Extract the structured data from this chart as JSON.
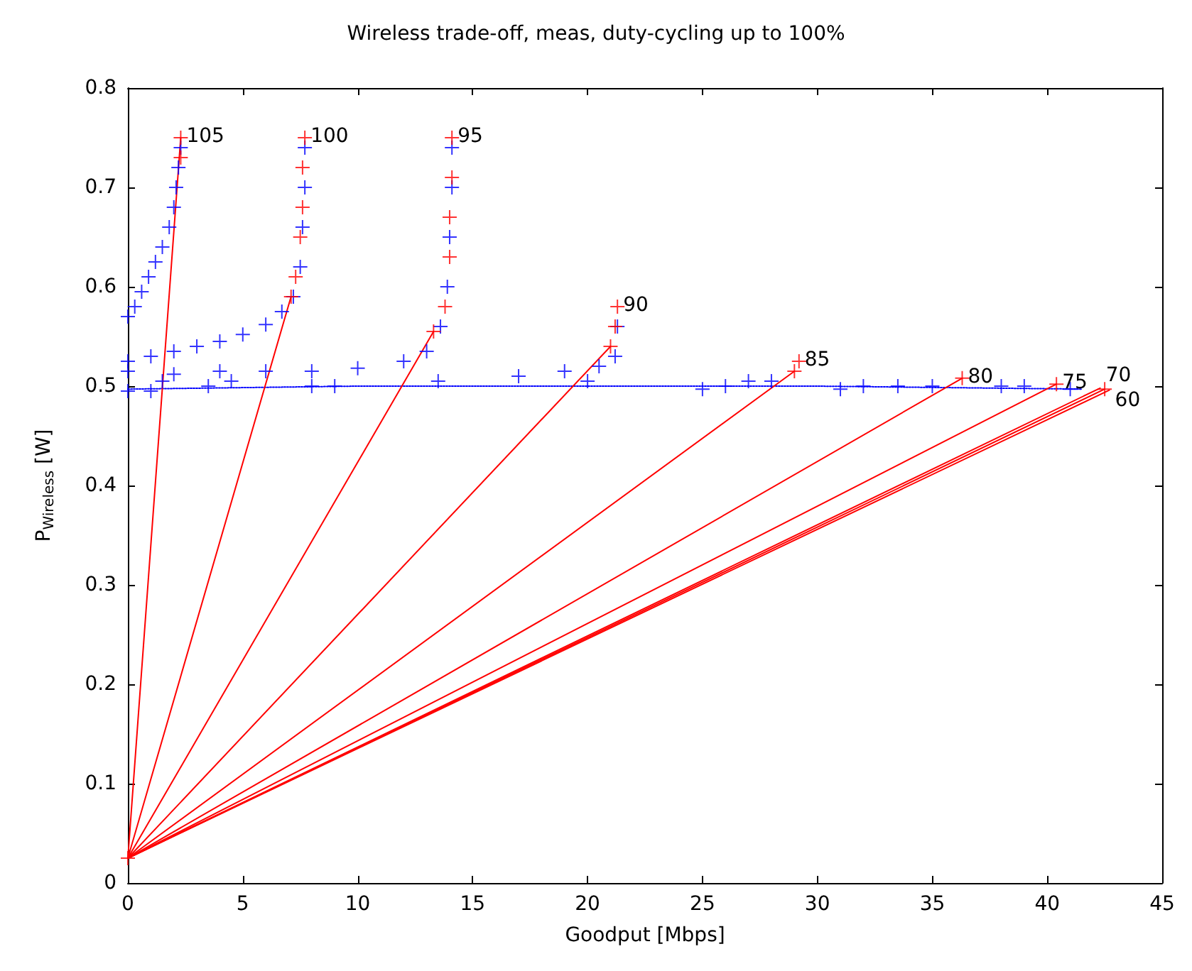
{
  "chart_data": {
    "type": "scatter",
    "title": "Wireless trade-off, meas, duty-cycling up to 100%",
    "xlabel": "Goodput [Mbps]",
    "ylabel": "P$_{Wireless}$ [W]",
    "xlim": [
      0,
      45
    ],
    "xticks": [
      0,
      5,
      10,
      15,
      20,
      25,
      30,
      35,
      40,
      45
    ],
    "ylim": [
      0,
      0.8
    ],
    "yticks": [
      0,
      0.1,
      0.2,
      0.3,
      0.4,
      0.5,
      0.6,
      0.7,
      0.8
    ],
    "grid": false,
    "series": [
      {
        "marker": "cross",
        "color": "#0000ff",
        "x": [
          0,
          0.3,
          0.6,
          0.9,
          1.2,
          1.5,
          1.8,
          2.0,
          2.1,
          2.2,
          2.3,
          0,
          1,
          2,
          3,
          4,
          5,
          6,
          6.7,
          7.2,
          7.5,
          7.6,
          7.7,
          7.7,
          0,
          2,
          4,
          6,
          8,
          10,
          12,
          13,
          13.6,
          13.9,
          14,
          14.1,
          14.1,
          17,
          19,
          20.5,
          21.2,
          21.3,
          0,
          1,
          1.5,
          3.5,
          4.5,
          8,
          9,
          13.5,
          20,
          25,
          26,
          27,
          28,
          31,
          32,
          33.5,
          35,
          38,
          39,
          41
        ],
        "values": [
          0.57,
          0.58,
          0.595,
          0.61,
          0.625,
          0.64,
          0.66,
          0.68,
          0.7,
          0.72,
          0.74,
          0.525,
          0.53,
          0.535,
          0.54,
          0.545,
          0.552,
          0.562,
          0.575,
          0.59,
          0.62,
          0.66,
          0.7,
          0.74,
          0.515,
          0.512,
          0.515,
          0.515,
          0.515,
          0.518,
          0.525,
          0.535,
          0.56,
          0.6,
          0.65,
          0.7,
          0.74,
          0.51,
          0.515,
          0.52,
          0.53,
          0.56,
          0.495,
          0.495,
          0.505,
          0.5,
          0.505,
          0.5,
          0.5,
          0.505,
          0.505,
          0.497,
          0.5,
          0.505,
          0.505,
          0.497,
          0.5,
          0.5,
          0.5,
          0.5,
          0.5,
          0.497
        ]
      },
      {
        "type": "line",
        "marker": "none",
        "line_style": "dotted",
        "color": "#0000ff",
        "x": [
          0,
          10,
          20,
          30,
          41.5
        ],
        "values": [
          0.497,
          0.5,
          0.5,
          0.5,
          0.497
        ]
      },
      {
        "marker": "cross",
        "color": "#ff0000",
        "x": [
          0,
          2.3,
          2.3,
          7.1,
          7.3,
          7.5,
          7.6,
          7.6,
          7.7,
          13.3,
          13.8,
          14,
          14,
          14.1,
          14.1,
          21,
          21.2,
          21.3,
          29,
          29.2,
          36.3,
          40.4,
          42.5
        ],
        "values": [
          0.025,
          0.73,
          0.75,
          0.59,
          0.61,
          0.65,
          0.68,
          0.72,
          0.75,
          0.555,
          0.58,
          0.63,
          0.67,
          0.71,
          0.75,
          0.54,
          0.56,
          0.58,
          0.515,
          0.525,
          0.508,
          0.502,
          0.497
        ]
      },
      {
        "type": "line",
        "marker": "none",
        "color": "#ff0000",
        "x": [
          0,
          2.3
        ],
        "values": [
          0.025,
          0.75
        ]
      },
      {
        "type": "line",
        "marker": "none",
        "color": "#ff0000",
        "x": [
          0,
          7.1
        ],
        "values": [
          0.025,
          0.59
        ]
      },
      {
        "type": "line",
        "marker": "none",
        "color": "#ff0000",
        "x": [
          0,
          13.3
        ],
        "values": [
          0.025,
          0.555
        ]
      },
      {
        "type": "line",
        "marker": "none",
        "color": "#ff0000",
        "x": [
          0,
          21
        ],
        "values": [
          0.025,
          0.54
        ]
      },
      {
        "type": "line",
        "marker": "none",
        "color": "#ff0000",
        "x": [
          0,
          29
        ],
        "values": [
          0.025,
          0.515
        ]
      },
      {
        "type": "line",
        "marker": "none",
        "color": "#ff0000",
        "x": [
          0,
          36.3
        ],
        "values": [
          0.025,
          0.508
        ]
      },
      {
        "type": "line",
        "marker": "none",
        "color": "#ff0000",
        "x": [
          0,
          40.4
        ],
        "values": [
          0.025,
          0.502
        ]
      },
      {
        "type": "line",
        "marker": "none",
        "color": "#ff0000",
        "x": [
          0,
          42.3
        ],
        "values": [
          0.025,
          0.498
        ]
      },
      {
        "type": "line",
        "marker": "none",
        "color": "#ff0000",
        "x": [
          0,
          42.5
        ],
        "values": [
          0.025,
          0.497
        ]
      },
      {
        "type": "line",
        "marker": "none",
        "color": "#ff0000",
        "x": [
          0,
          42.7
        ],
        "values": [
          0.025,
          0.496
        ]
      }
    ],
    "annotations": [
      {
        "text": "105",
        "x": 2.3,
        "y": 0.75
      },
      {
        "text": "100",
        "x": 7.7,
        "y": 0.75
      },
      {
        "text": "95",
        "x": 14.1,
        "y": 0.75
      },
      {
        "text": "90",
        "x": 21.3,
        "y": 0.58
      },
      {
        "text": "85",
        "x": 29.2,
        "y": 0.525
      },
      {
        "text": "80",
        "x": 36.3,
        "y": 0.508
      },
      {
        "text": "75",
        "x": 40.4,
        "y": 0.502
      },
      {
        "text": "70",
        "x": 42.3,
        "y": 0.498
      },
      {
        "text": "60",
        "x": 42.7,
        "y": 0.496
      }
    ]
  }
}
